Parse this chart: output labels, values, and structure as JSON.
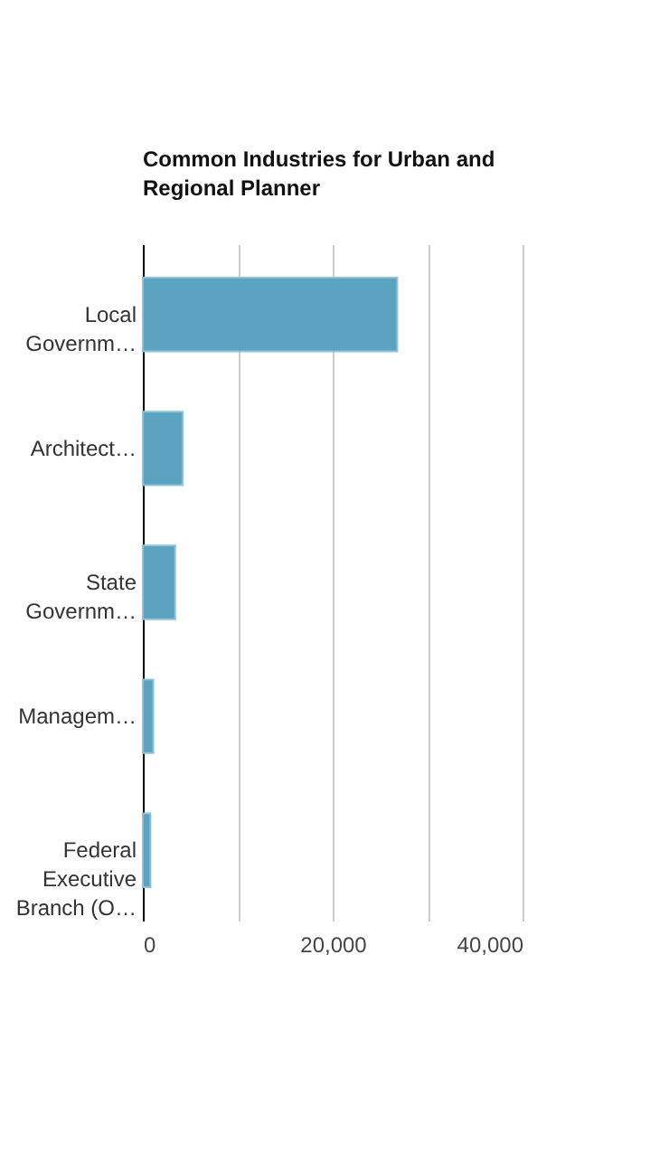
{
  "chart_data": {
    "type": "bar",
    "orientation": "horizontal",
    "title": "Common Industries for Urban and Regional Planner",
    "categories": [
      "Local Governm…",
      "Architect…",
      "State Governm…",
      "Managem…",
      "Federal Executive Branch (O…"
    ],
    "values": [
      26800,
      4200,
      3400,
      1100,
      800
    ],
    "color": "#5ba3c0",
    "xlim": [
      0,
      40000
    ],
    "xticks": [
      0,
      {
        "value": 10000,
        "label": null
      },
      {
        "value": 20000,
        "label": "20,000"
      },
      {
        "value": 30000,
        "label": null
      },
      {
        "value": 40000,
        "label": "40,000"
      }
    ],
    "grid": "x"
  }
}
